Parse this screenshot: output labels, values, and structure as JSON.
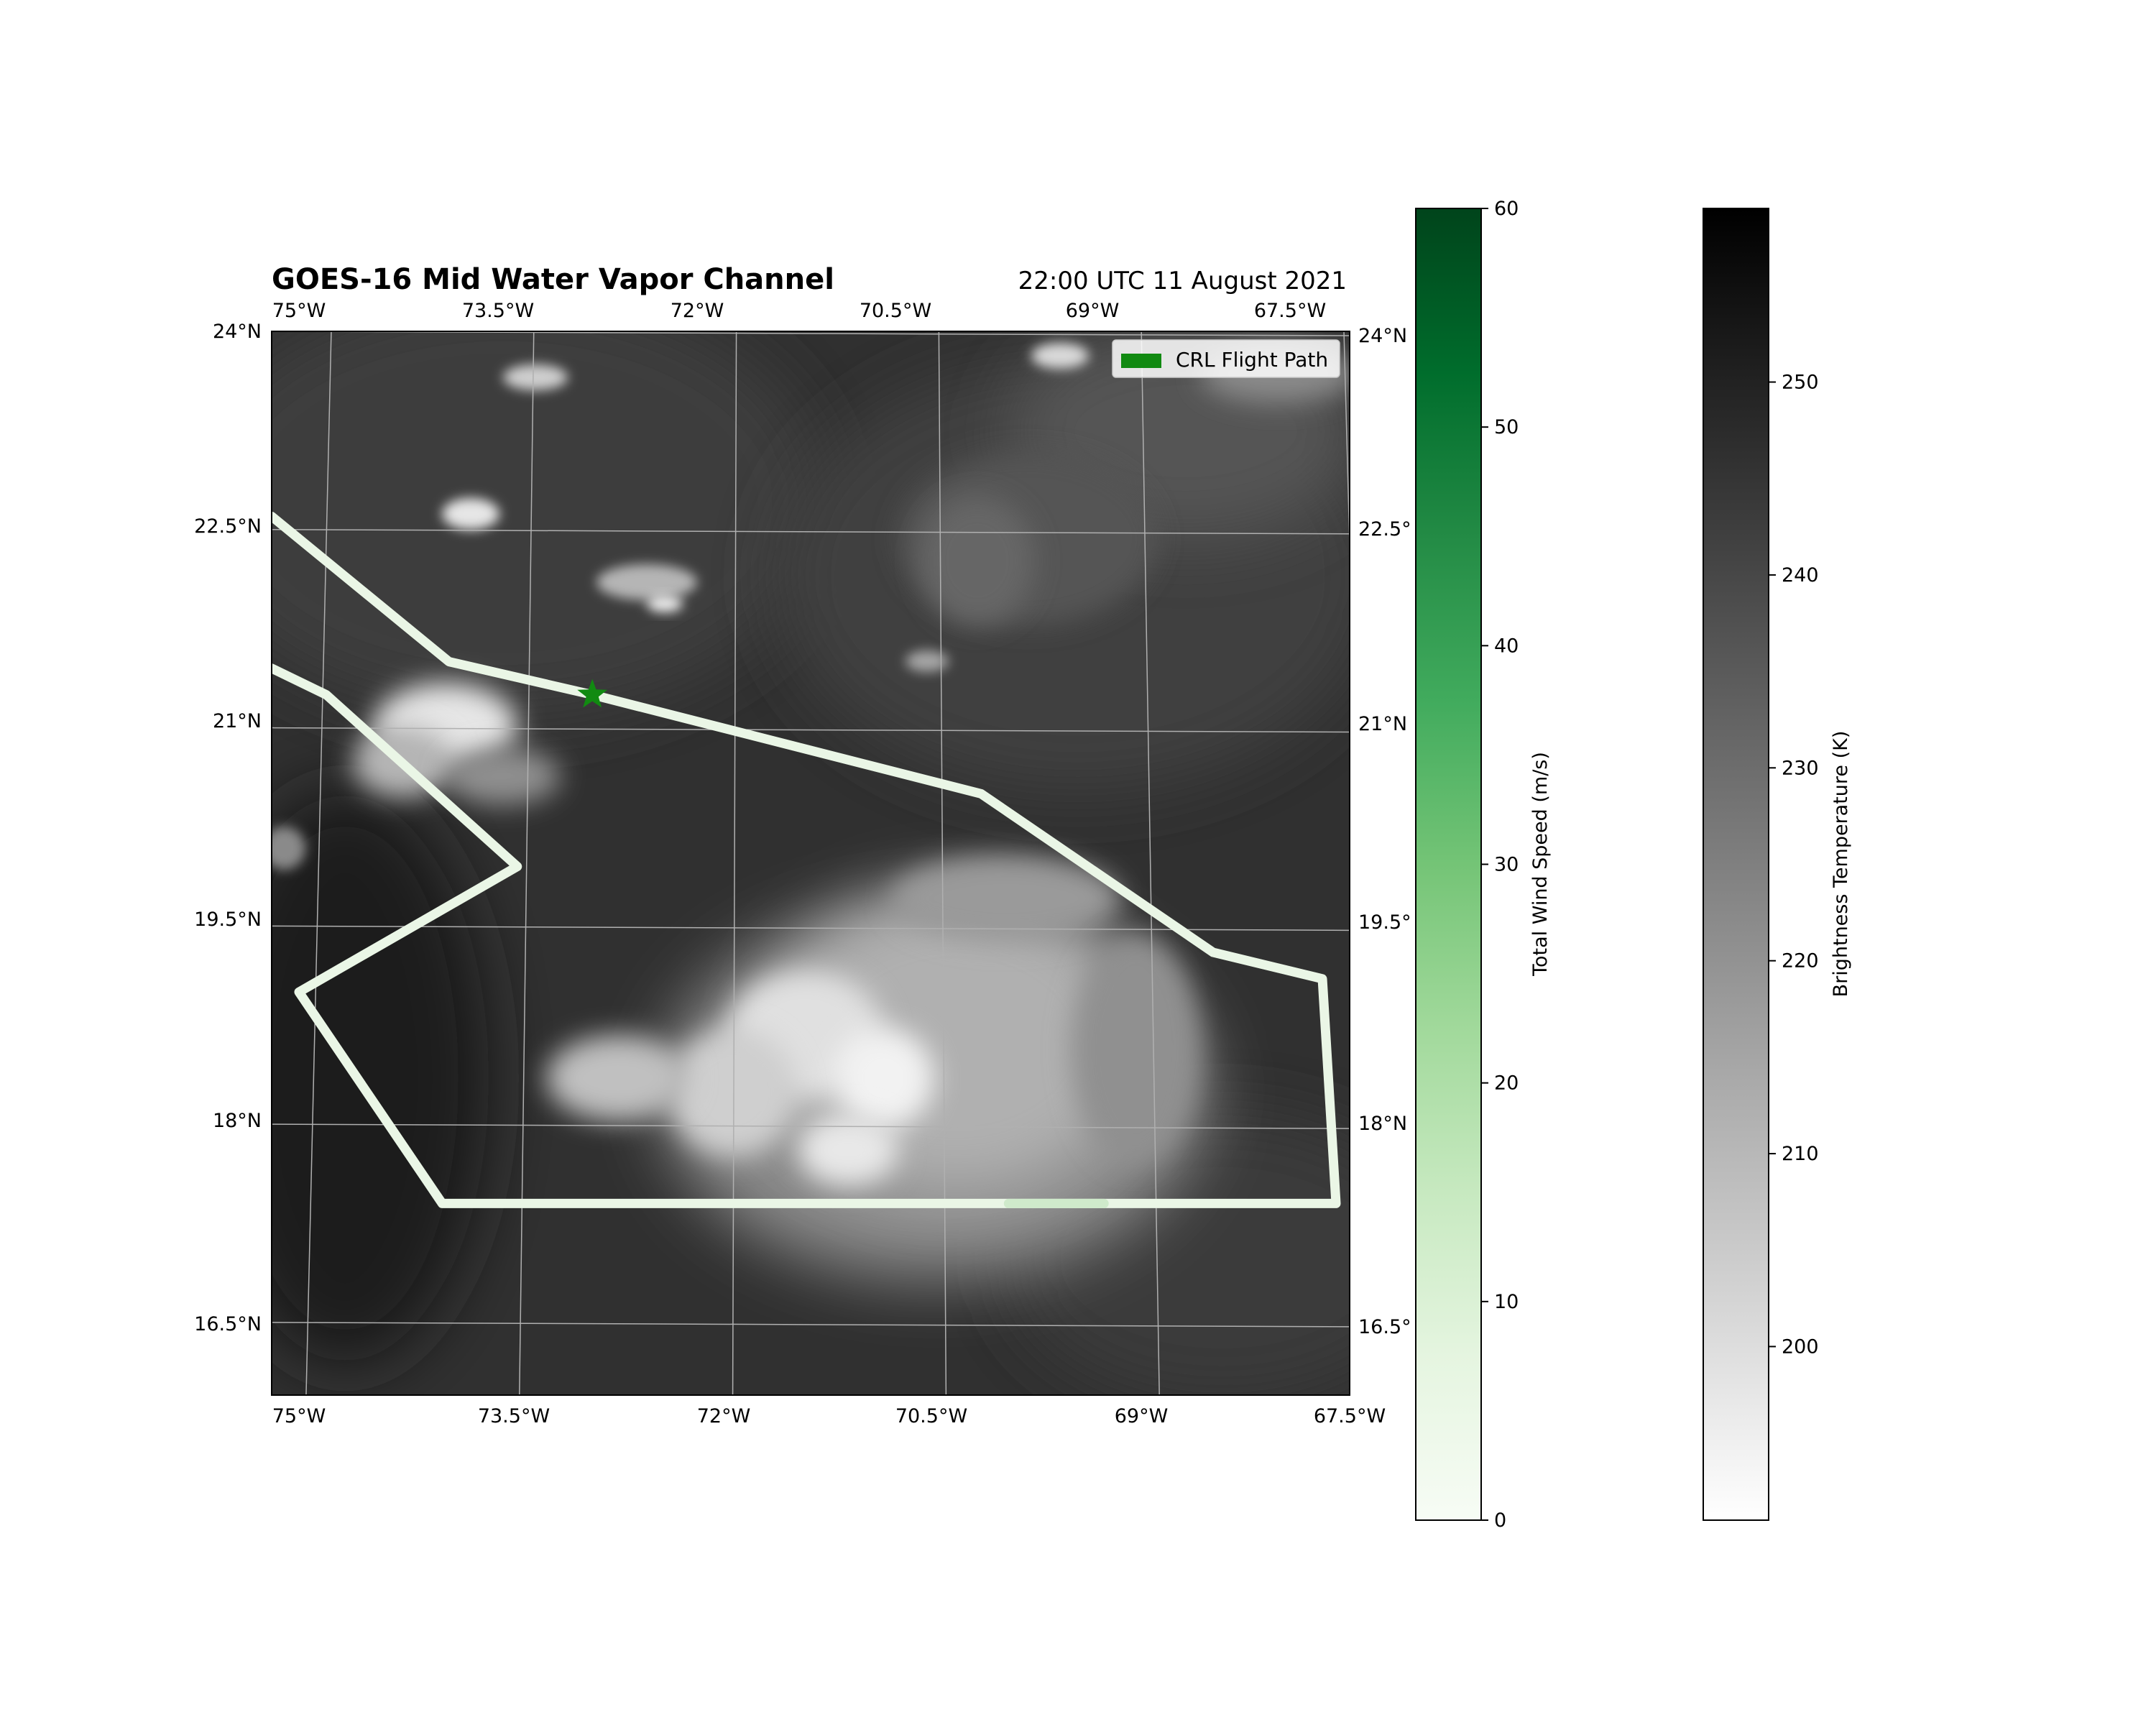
{
  "title": "GOES-16 Mid Water Vapor Channel",
  "timestamp": "22:00 UTC 11 August 2021",
  "legend": {
    "label": "CRL Flight Path",
    "color": "#118a11"
  },
  "map": {
    "lon_range": [
      -75.4,
      -67.5
    ],
    "lat_range": [
      15.95,
      24.0
    ],
    "gridlines": {
      "top_lon_labels": [
        "75°W",
        "73.5°W",
        "72°W",
        "70.5°W",
        "69°W",
        "67.5°W"
      ],
      "bottom_lon_labels": [
        "75°W",
        "73.5°W",
        "72°W",
        "70.5°W",
        "69°W",
        "67.5°W"
      ],
      "left_lat_labels": [
        "24°N",
        "22.5°N",
        "21°N",
        "19.5°N",
        "18°N",
        "16.5°N"
      ],
      "right_lat_labels": [
        "24°N",
        "22.5°",
        "21°N",
        "19.5°",
        "18°N",
        "16.5°"
      ]
    },
    "background": "grayscale water vapor imagery (brightness temperature)",
    "star_marker": {
      "lon": -73.05,
      "lat": 21.25,
      "color": "#118a11"
    },
    "flight_path_color": "#eaf6e6"
  },
  "colorbars": [
    {
      "label": "Total Wind Speed (m/s)",
      "ticks": [
        "0",
        "10",
        "20",
        "30",
        "40",
        "50",
        "60"
      ],
      "colormap": [
        "#f7fcf5",
        "#e5f5e0",
        "#c7e9c0",
        "#a1d99b",
        "#74c476",
        "#41ab5d",
        "#238b45",
        "#006d2c",
        "#00441b"
      ]
    },
    {
      "label": "Brightness Temperature (K)",
      "ticks": [
        "200",
        "210",
        "220",
        "230",
        "240",
        "250"
      ],
      "colormap": [
        "#ffffff",
        "#000000"
      ]
    }
  ],
  "chart_data": {
    "type": "map",
    "title": "GOES-16 Mid Water Vapor Channel",
    "subtitle": "22:00 UTC 11 August 2021",
    "xlabel": "",
    "ylabel": "",
    "xlim": [
      -75.4,
      -67.5
    ],
    "ylim": [
      15.95,
      24.0
    ],
    "series": [
      {
        "name": "CRL Flight Path",
        "x": [
          -75.4,
          -74.1,
          -73.05,
          -70.2,
          -68.5,
          -67.7,
          -67.6,
          -67.6,
          -74.15,
          -75.2,
          -73.6,
          -74.3,
          -75.0,
          -75.4
        ],
        "y": [
          22.6,
          21.5,
          21.25,
          20.5,
          19.3,
          19.1,
          17.4,
          17.4,
          17.4,
          19.0,
          19.95,
          20.6,
          21.25,
          21.45
        ]
      }
    ],
    "markers": [
      {
        "label": "",
        "x": -73.05,
        "y": 21.25
      }
    ],
    "colorbar_ranges": {
      "wind_speed": [
        0,
        60
      ],
      "brightness_temperature": [
        191,
        259
      ]
    }
  }
}
